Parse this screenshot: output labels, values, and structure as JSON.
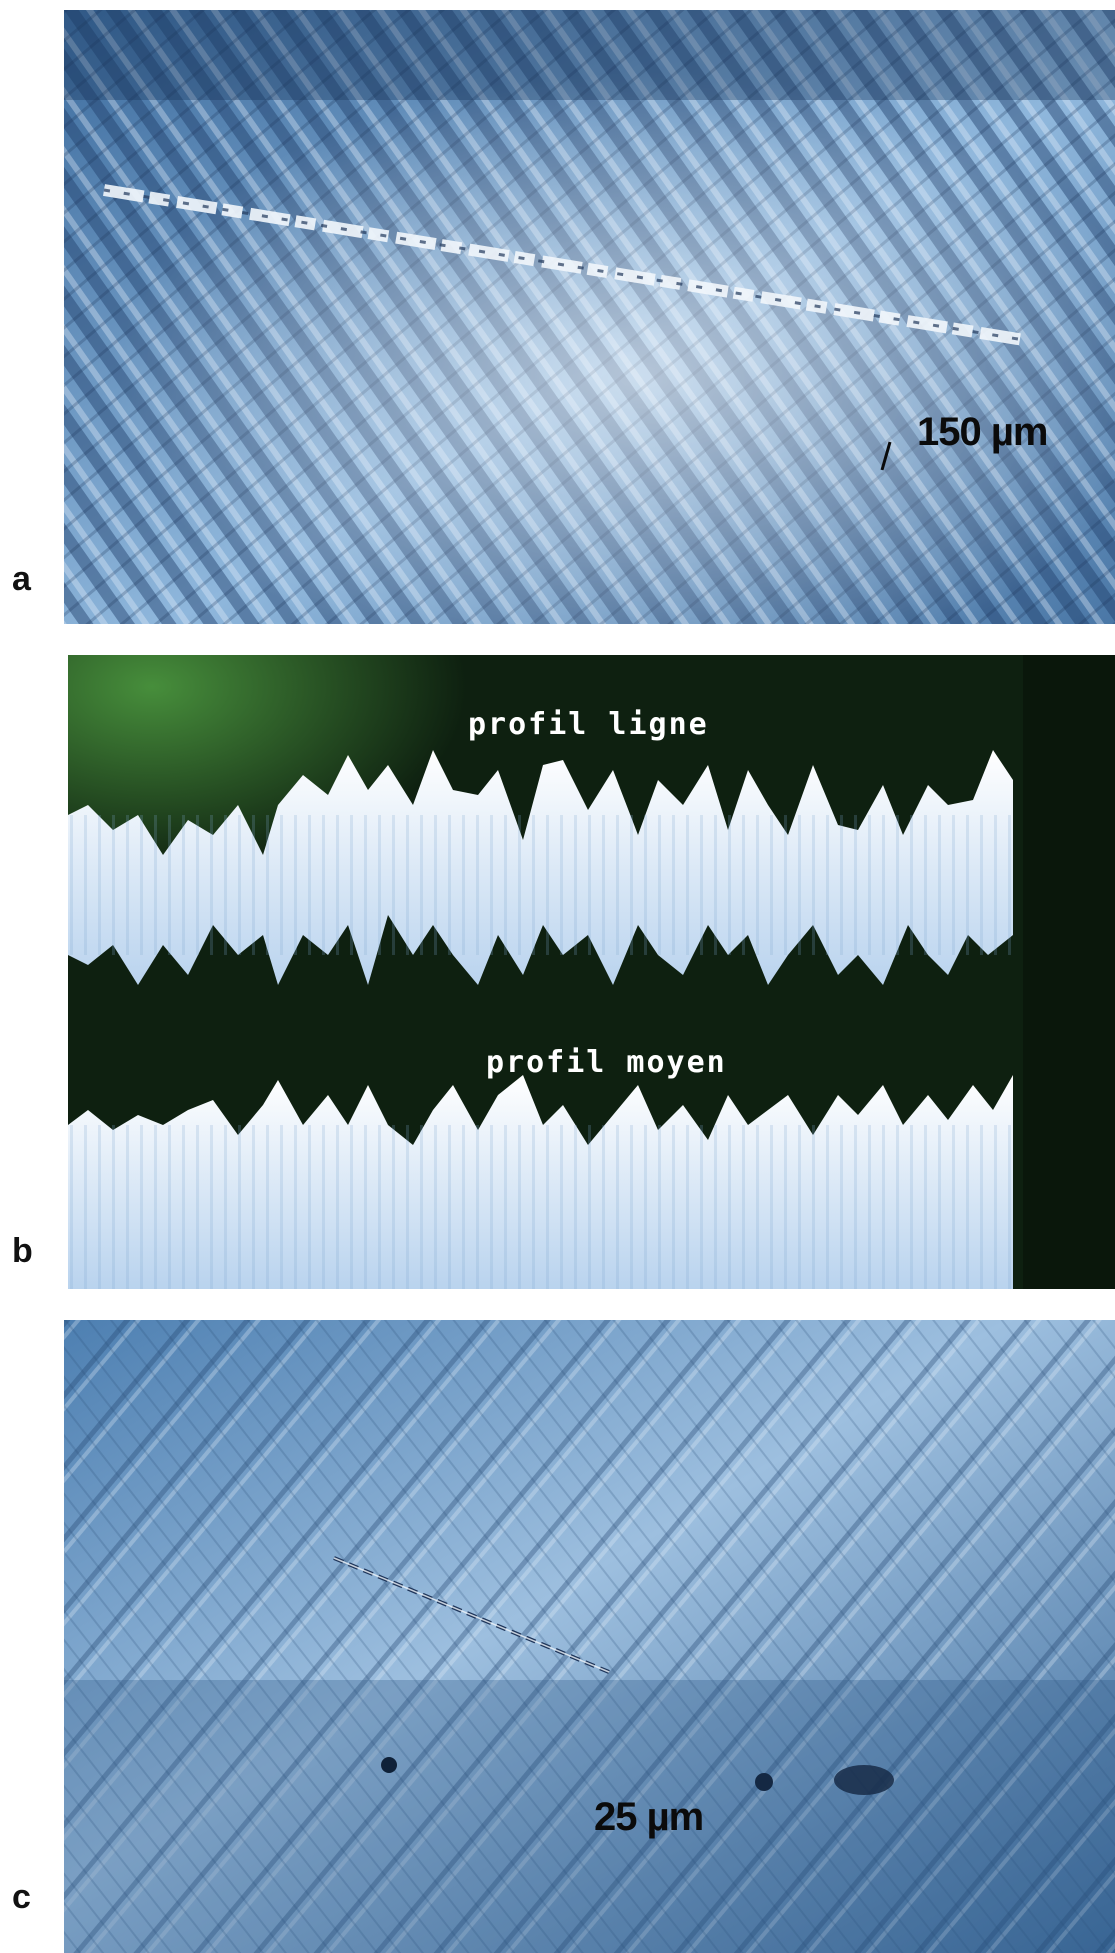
{
  "panels": [
    {
      "label": "a",
      "scale_bar": "150 µm"
    },
    {
      "label": "b",
      "profile_top": "profil ligne",
      "profile_bottom": "profil moyen"
    },
    {
      "label": "c",
      "scale_bar": "25 µm"
    }
  ],
  "colors": {
    "micrograph_blue": "#5f8fc0",
    "crt_background": "#0e2010",
    "crt_trace": "#e9f2fb",
    "crt_glow": "#3f8a3a"
  }
}
